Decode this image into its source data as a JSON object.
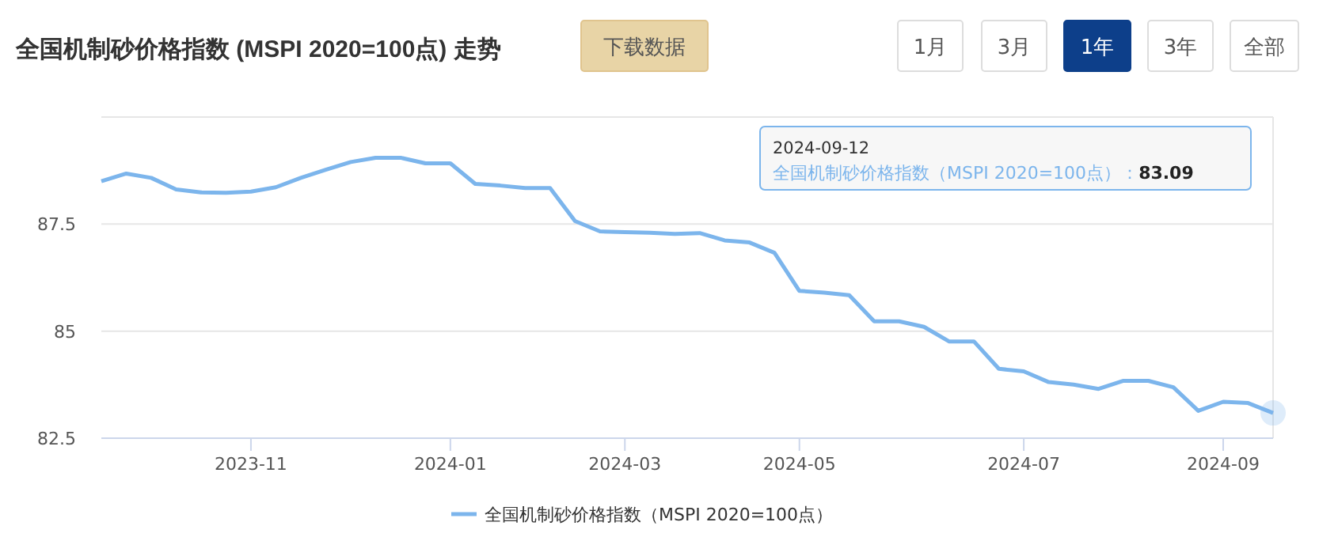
{
  "chart_data": {
    "type": "line",
    "title": "全国机制砂价格指数 (MSPI 2020=100点) 走势",
    "categories": [
      null,
      null,
      null,
      null,
      null,
      null,
      "2023-11",
      null,
      null,
      null,
      null,
      null,
      null,
      null,
      "2024-01",
      null,
      null,
      null,
      null,
      null,
      null,
      "2024-03",
      null,
      null,
      null,
      null,
      null,
      null,
      "2024-05",
      null,
      null,
      null,
      null,
      null,
      null,
      null,
      null,
      "2024-07",
      null,
      null,
      null,
      null,
      null,
      null,
      null,
      "2024-09",
      null,
      null
    ],
    "series": [
      {
        "name": "全国机制砂价格指数（MSPI 2020=100点）",
        "color": "#7cb5ec",
        "values": [
          88.5,
          88.68,
          88.58,
          88.31,
          88.24,
          88.23,
          88.26,
          88.36,
          88.58,
          88.77,
          88.95,
          89.05,
          89.05,
          88.92,
          88.92,
          88.44,
          88.4,
          88.34,
          88.34,
          87.57,
          87.33,
          87.31,
          87.3,
          87.27,
          87.29,
          87.12,
          87.07,
          86.83,
          85.94,
          85.9,
          85.84,
          85.23,
          85.23,
          85.1,
          84.76,
          84.76,
          84.12,
          84.06,
          83.81,
          83.75,
          83.65,
          83.84,
          83.84,
          83.69,
          83.14,
          83.35,
          83.32,
          83.09
        ]
      }
    ],
    "ylim": [
      82.5,
      90
    ],
    "yticks": [
      82.5,
      85,
      87.5,
      {
        "value": 90,
        "label": null
      }
    ],
    "grid": "y",
    "legend": "bottom",
    "marker": "none",
    "line_style": "solid",
    "annotations": [
      "下载数据",
      "1月",
      "3月",
      "1年",
      "3年",
      "全部",
      "2024-09-12",
      "全国机制砂价格指数（MSPI 2020=100点）：**83.09**"
    ]
  }
}
